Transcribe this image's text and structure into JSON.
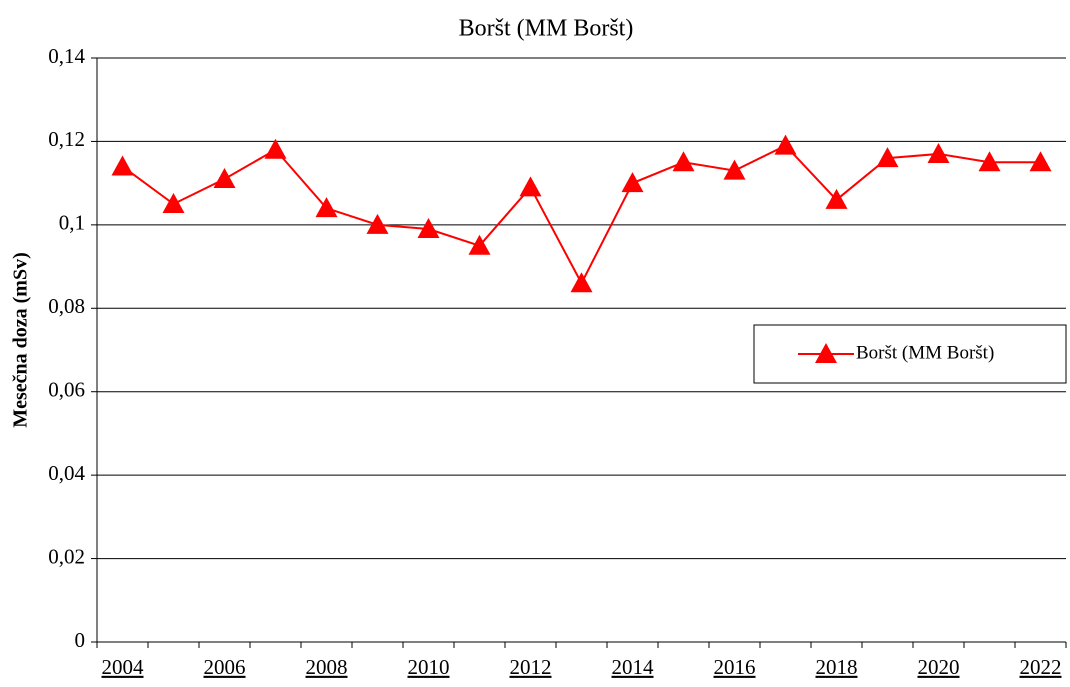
{
  "chart_data": {
    "type": "line",
    "title": "Boršt (MM Boršt)",
    "y_label": "Mesečna doza (mSv)",
    "categories": [
      "2004",
      null,
      "2006",
      null,
      "2008",
      null,
      "2010",
      null,
      "2012",
      null,
      "2014",
      null,
      "2016",
      null,
      "2018",
      null,
      "2020",
      null,
      "2022"
    ],
    "series": [
      {
        "name": "Boršt (MM Boršt)",
        "color": "#ff0000",
        "values": [
          0.114,
          0.105,
          0.111,
          0.118,
          0.104,
          0.1,
          0.099,
          0.095,
          0.109,
          0.086,
          0.11,
          0.115,
          0.113,
          0.119,
          0.106,
          0.116,
          0.117,
          0.115,
          0.115
        ]
      }
    ],
    "ylim": [
      0,
      0.14
    ],
    "yticks": [
      0,
      {
        "value": 0.02,
        "label": "0,02"
      },
      {
        "value": 0.04,
        "label": "0,04"
      },
      {
        "value": 0.06,
        "label": "0,06"
      },
      {
        "value": 0.08,
        "label": "0,08"
      },
      {
        "value": 0.1,
        "label": "0,1"
      },
      {
        "value": 0.12,
        "label": "0,12"
      },
      {
        "value": 0.14,
        "label": "0,14"
      }
    ],
    "grid": true,
    "legend": "right"
  }
}
